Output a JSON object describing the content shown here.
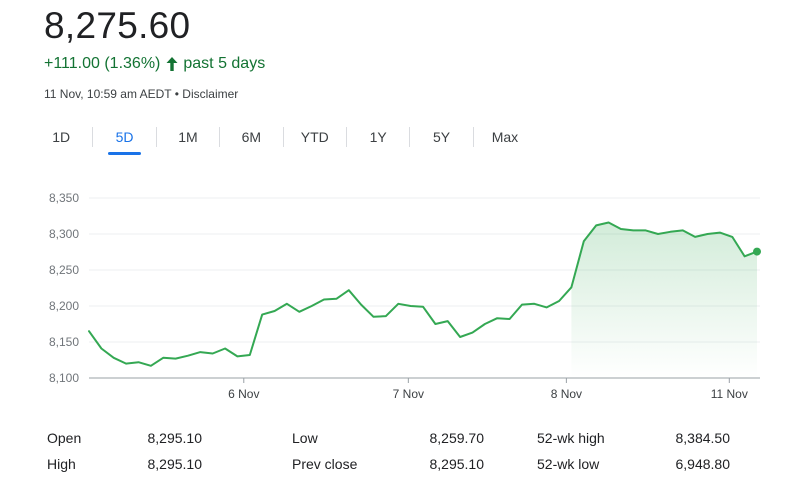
{
  "quote": {
    "price": "8,275.60",
    "change": "+111.00 (1.36%)",
    "period": "past 5 days",
    "timestamp": "11 Nov, 10:59 am AEDT",
    "separator": "•",
    "disclaimer": "Disclaimer",
    "color_up": "#137333"
  },
  "tabs": [
    {
      "label": "1D",
      "active": false
    },
    {
      "label": "5D",
      "active": true
    },
    {
      "label": "1M",
      "active": false
    },
    {
      "label": "6M",
      "active": false
    },
    {
      "label": "YTD",
      "active": false
    },
    {
      "label": "1Y",
      "active": false
    },
    {
      "label": "5Y",
      "active": false
    },
    {
      "label": "Max",
      "active": false
    }
  ],
  "chart_data": {
    "type": "area",
    "line_color": "#34a853",
    "ylim": [
      8100,
      8350
    ],
    "yticks": [
      {
        "value": 8350,
        "label": "8,350"
      },
      {
        "value": 8300,
        "label": "8,300"
      },
      {
        "value": 8250,
        "label": "8,250"
      },
      {
        "value": 8200,
        "label": "8,200"
      },
      {
        "value": 8150,
        "label": "8,150"
      },
      {
        "value": 8100,
        "label": "8,100"
      }
    ],
    "xlim": [
      0,
      41
    ],
    "xticks": [
      {
        "value": 9.5,
        "label": "6 Nov"
      },
      {
        "value": 19.6,
        "label": "7 Nov"
      },
      {
        "value": 29.3,
        "label": "8 Nov"
      },
      {
        "value": 39.3,
        "label": "11 Nov"
      }
    ],
    "grid": true,
    "series": [
      {
        "values": [
          8165,
          8141,
          8128,
          8120,
          8122,
          8117,
          8128,
          8127,
          8131,
          8136,
          8134,
          8141,
          8130,
          8132,
          8188,
          8193,
          8203,
          8192,
          8200,
          8209,
          8210,
          8222,
          8202,
          8185,
          8186,
          8203,
          8200,
          8199,
          8175,
          8179,
          8157,
          8163,
          8175,
          8183,
          8182,
          8202,
          8203,
          8198,
          8207,
          8226,
          8290,
          8312,
          8316,
          8307,
          8305,
          8305,
          8300,
          8303,
          8305,
          8296,
          8300,
          8302,
          8296,
          8269,
          8275.6
        ]
      }
    ]
  },
  "stats": [
    {
      "label": "Open",
      "value": "8,295.10"
    },
    {
      "label": "High",
      "value": "8,295.10"
    },
    {
      "label": "Low",
      "value": "8,259.70"
    },
    {
      "label": "Prev close",
      "value": "8,295.10"
    },
    {
      "label": "52-wk high",
      "value": "8,384.50"
    },
    {
      "label": "52-wk low",
      "value": "6,948.80"
    }
  ]
}
